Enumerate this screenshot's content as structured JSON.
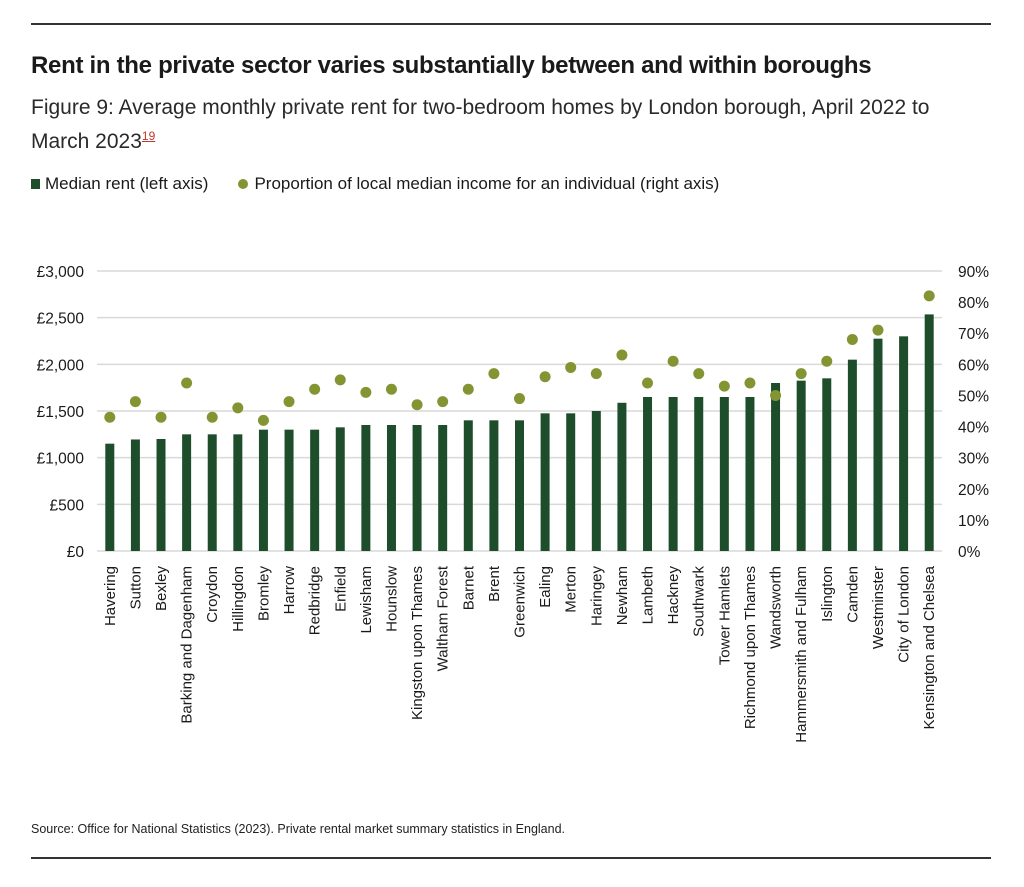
{
  "header": {
    "title": "Rent in the private sector varies substantially between and within boroughs",
    "subtitle": "Figure 9: Average monthly private rent for two-bedroom homes by London borough, April 2022 to March 2023",
    "footnote_marker": "19"
  },
  "legend": {
    "items": [
      {
        "label": "Median rent (left axis)",
        "type": "bar",
        "color": "#1e4d2b"
      },
      {
        "label": "Proportion of local median income for an individual (right axis)",
        "type": "dot",
        "color": "#839533"
      }
    ]
  },
  "source": "Source: Office for National Statistics (2023). Private rental market summary statistics in England.",
  "chart_data": {
    "type": "bar",
    "title": "Rent in the private sector varies substantially between and within boroughs",
    "subtitle": "Figure 9: Average monthly private rent for two-bedroom homes by London borough, April 2022 to March 2023",
    "xlabel": "",
    "ylabel": "",
    "grid": true,
    "legend_position": "top-left",
    "categories": [
      "Havering",
      "Sutton",
      "Bexley",
      "Barking and Dagenham",
      "Croydon",
      "Hillingdon",
      "Bromley",
      "Harrow",
      "Redbridge",
      "Enfield",
      "Lewisham",
      "Hounslow",
      "Kingston upon Thames",
      "Waltham Forest",
      "Barnet",
      "Brent",
      "Greenwich",
      "Ealing",
      "Merton",
      "Haringey",
      "Newham",
      "Lambeth",
      "Hackney",
      "Southwark",
      "Tower Hamlets",
      "Richmond upon Thames",
      "Wandsworth",
      "Hammersmith and Fulham",
      "Islington",
      "Camden",
      "Westminster",
      "City of London",
      "Kensington and Chelsea"
    ],
    "series": [
      {
        "name": "Median rent (left axis)",
        "type": "bar",
        "axis": "left",
        "color": "#1e4d2b",
        "values": [
          1150,
          1195,
          1200,
          1250,
          1250,
          1250,
          1300,
          1300,
          1300,
          1325,
          1350,
          1350,
          1350,
          1350,
          1400,
          1400,
          1400,
          1475,
          1475,
          1500,
          1588,
          1650,
          1650,
          1650,
          1650,
          1650,
          1800,
          1825,
          1850,
          2050,
          2275,
          2300,
          2535
        ]
      },
      {
        "name": "Proportion of local median income for an individual (right axis)",
        "type": "scatter",
        "axis": "right",
        "color": "#839533",
        "values": [
          43,
          48,
          43,
          54,
          43,
          46,
          42,
          48,
          52,
          55,
          51,
          52,
          47,
          48,
          52,
          57,
          49,
          56,
          59,
          57,
          63,
          54,
          61,
          57,
          53,
          54,
          50,
          57,
          61,
          68,
          71,
          null,
          82
        ]
      }
    ],
    "left_axis": {
      "range": [
        0,
        3000
      ],
      "ticks": [
        0,
        500,
        1000,
        1500,
        2000,
        2500,
        3000
      ],
      "tick_labels": [
        "£0",
        "£500",
        "£1,000",
        "£1,500",
        "£2,000",
        "£2,500",
        "£3,000"
      ]
    },
    "right_axis": {
      "range": [
        0,
        90
      ],
      "ticks": [
        0,
        10,
        20,
        30,
        40,
        50,
        60,
        70,
        80,
        90
      ],
      "tick_labels": [
        "0%",
        "10%",
        "20%",
        "30%",
        "40%",
        "50%",
        "60%",
        "70%",
        "80%",
        "90%"
      ]
    }
  }
}
